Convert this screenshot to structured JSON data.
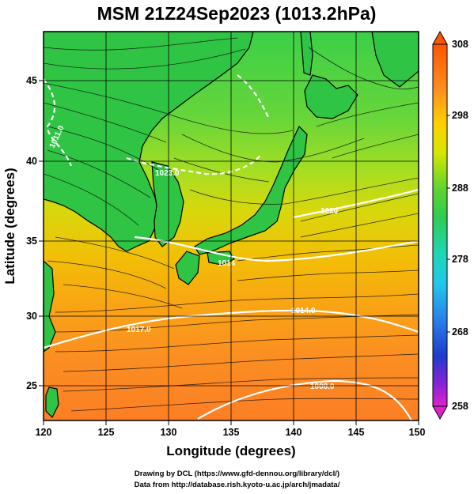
{
  "title": "MSM 21Z24Sep2023 (1013.2hPa)",
  "axes": {
    "xlabel": "Longitude (degrees)",
    "ylabel": "Latitude  (degrees)",
    "x_ticks": [
      "120",
      "125",
      "130",
      "135",
      "140",
      "145",
      "150"
    ],
    "y_ticks": [
      "25",
      "30",
      "35",
      "40",
      "45"
    ]
  },
  "colorbar": {
    "labels": [
      "308",
      "298",
      "288",
      "278",
      "268",
      "258"
    ]
  },
  "isobar_labels": [
    "1011.0",
    "1023.0",
    "1020",
    "1014",
    "1014.0",
    "1017.0",
    "1008.0"
  ],
  "credits": {
    "line1": "Drawing by DCL (https://www.gfd-dennou.org/library/dcl/)",
    "line2": "Data from http://database.rish.kyoto-u.ac.jp/arch/jmadata/"
  },
  "colors": {
    "land_north": "#33cc44",
    "sea_north": "#99dd22",
    "sea_mid": "#ddcc00",
    "sea_south": "#ff8822",
    "isobar": "#ffffff",
    "coast": "#000000"
  }
}
